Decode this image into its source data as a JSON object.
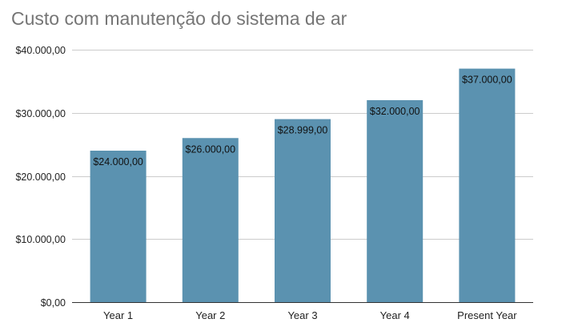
{
  "chart_data": {
    "type": "bar",
    "title": "Custo com manutenção do sistema de ar",
    "categories": [
      "Year 1",
      "Year 2",
      "Year 3",
      "Year 4",
      "Present Year"
    ],
    "values": [
      24000,
      26000,
      28999,
      32000,
      37000
    ],
    "data_labels": [
      "$24.000,00",
      "$26.000,00",
      "$28.999,00",
      "$32.000,00",
      "$37.000,00"
    ],
    "y_ticks": [
      0,
      10000,
      20000,
      30000,
      40000
    ],
    "y_tick_labels": [
      "$0,00",
      "$10.000,00",
      "$20.000,00",
      "$30.000,00",
      "$40.000,00"
    ],
    "ylim": [
      0,
      40000
    ],
    "xlabel": "",
    "ylabel": "",
    "grid": true,
    "legend": "none",
    "bar_color": "#5b92b0"
  }
}
